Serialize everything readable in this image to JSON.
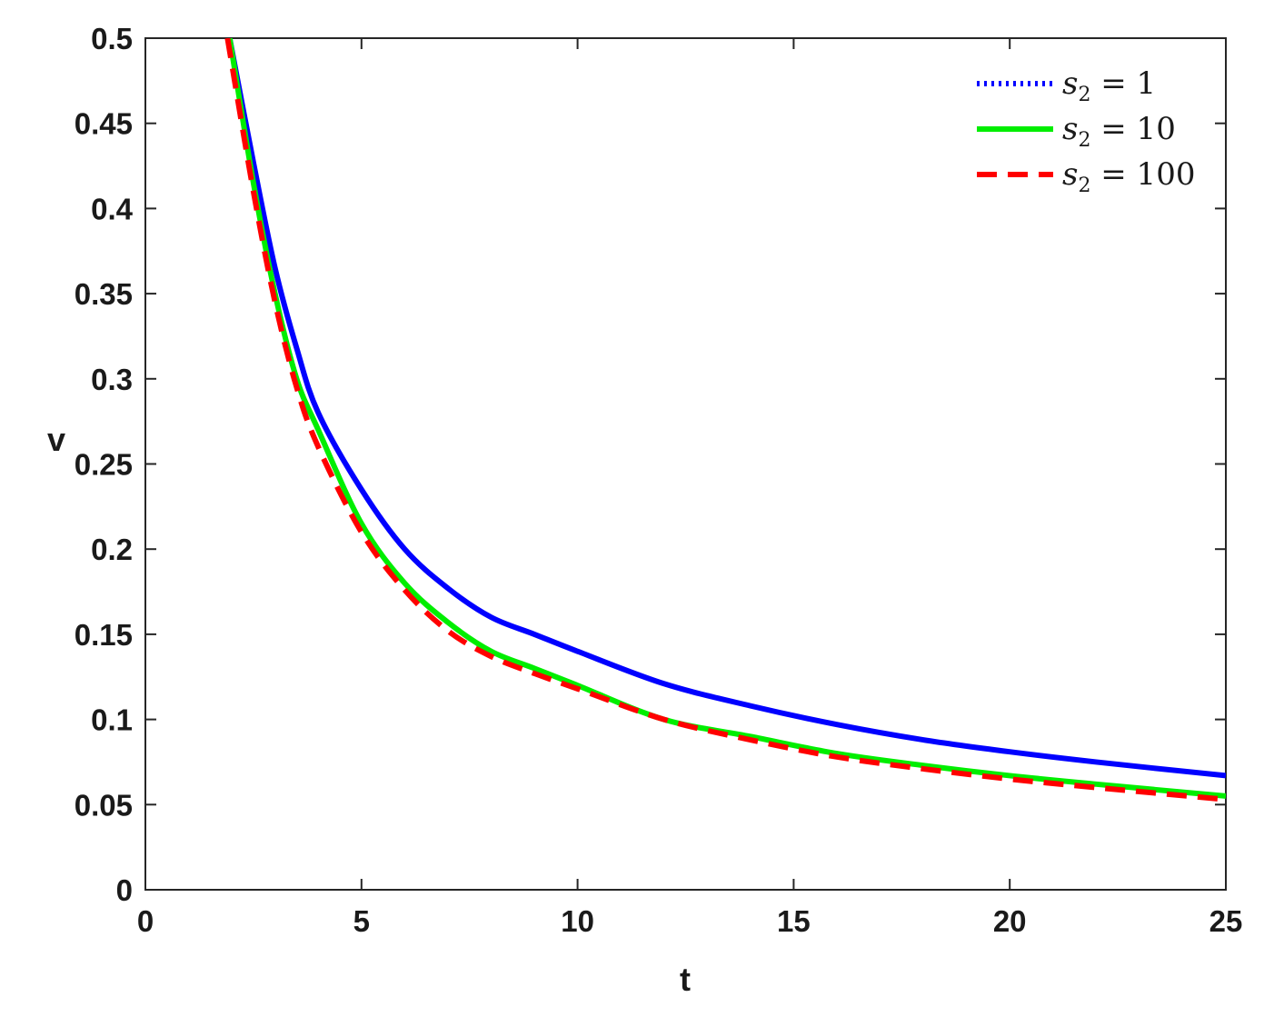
{
  "chart_data": {
    "type": "line",
    "xlabel": "t",
    "ylabel": "v",
    "xlim": [
      0,
      25
    ],
    "ylim": [
      0,
      0.5
    ],
    "xticks": [
      "0",
      "5",
      "10",
      "15",
      "20",
      "25"
    ],
    "yticks": [
      "0",
      "0.05",
      "0.1",
      "0.15",
      "0.2",
      "0.25",
      "0.3",
      "0.35",
      "0.4",
      "0.45",
      "0.5"
    ],
    "grid": false,
    "legend_position": "top-right",
    "series": [
      {
        "name": "s2 = 1",
        "legend_base": "s",
        "legend_sub": "2",
        "legend_rest": " = 1",
        "color": "#0000ff",
        "style": "dotted",
        "x": [
          1.95,
          2.5,
          3,
          3.5,
          4,
          5,
          6,
          7,
          8,
          9,
          10,
          12,
          14,
          16,
          18,
          20,
          22,
          25
        ],
        "y": [
          0.5,
          0.427,
          0.365,
          0.318,
          0.28,
          0.235,
          0.2,
          0.177,
          0.16,
          0.15,
          0.14,
          0.121,
          0.108,
          0.097,
          0.088,
          0.081,
          0.075,
          0.067
        ]
      },
      {
        "name": "s2 = 10",
        "legend_base": "s",
        "legend_sub": "2",
        "legend_rest": " = 10",
        "color": "#00ee00",
        "style": "solid",
        "x": [
          1.95,
          2.5,
          3,
          3.5,
          4,
          5,
          6,
          7,
          8,
          9,
          10,
          12,
          14,
          16,
          18,
          20,
          22,
          25
        ],
        "y": [
          0.5,
          0.415,
          0.35,
          0.3,
          0.27,
          0.215,
          0.18,
          0.157,
          0.14,
          0.13,
          0.12,
          0.1,
          0.09,
          0.08,
          0.073,
          0.067,
          0.062,
          0.055
        ]
      },
      {
        "name": "s2 = 100",
        "legend_base": "s",
        "legend_sub": "2",
        "legend_rest": " = 100",
        "color": "#ff0000",
        "style": "dashed",
        "x": [
          1.9,
          2.5,
          3,
          3.5,
          4,
          5,
          6,
          7,
          8,
          9,
          10,
          12,
          14,
          16,
          18,
          20,
          22,
          25
        ],
        "y": [
          0.5,
          0.41,
          0.345,
          0.295,
          0.26,
          0.21,
          0.176,
          0.152,
          0.137,
          0.127,
          0.118,
          0.1,
          0.088,
          0.078,
          0.071,
          0.065,
          0.06,
          0.053
        ]
      }
    ]
  }
}
